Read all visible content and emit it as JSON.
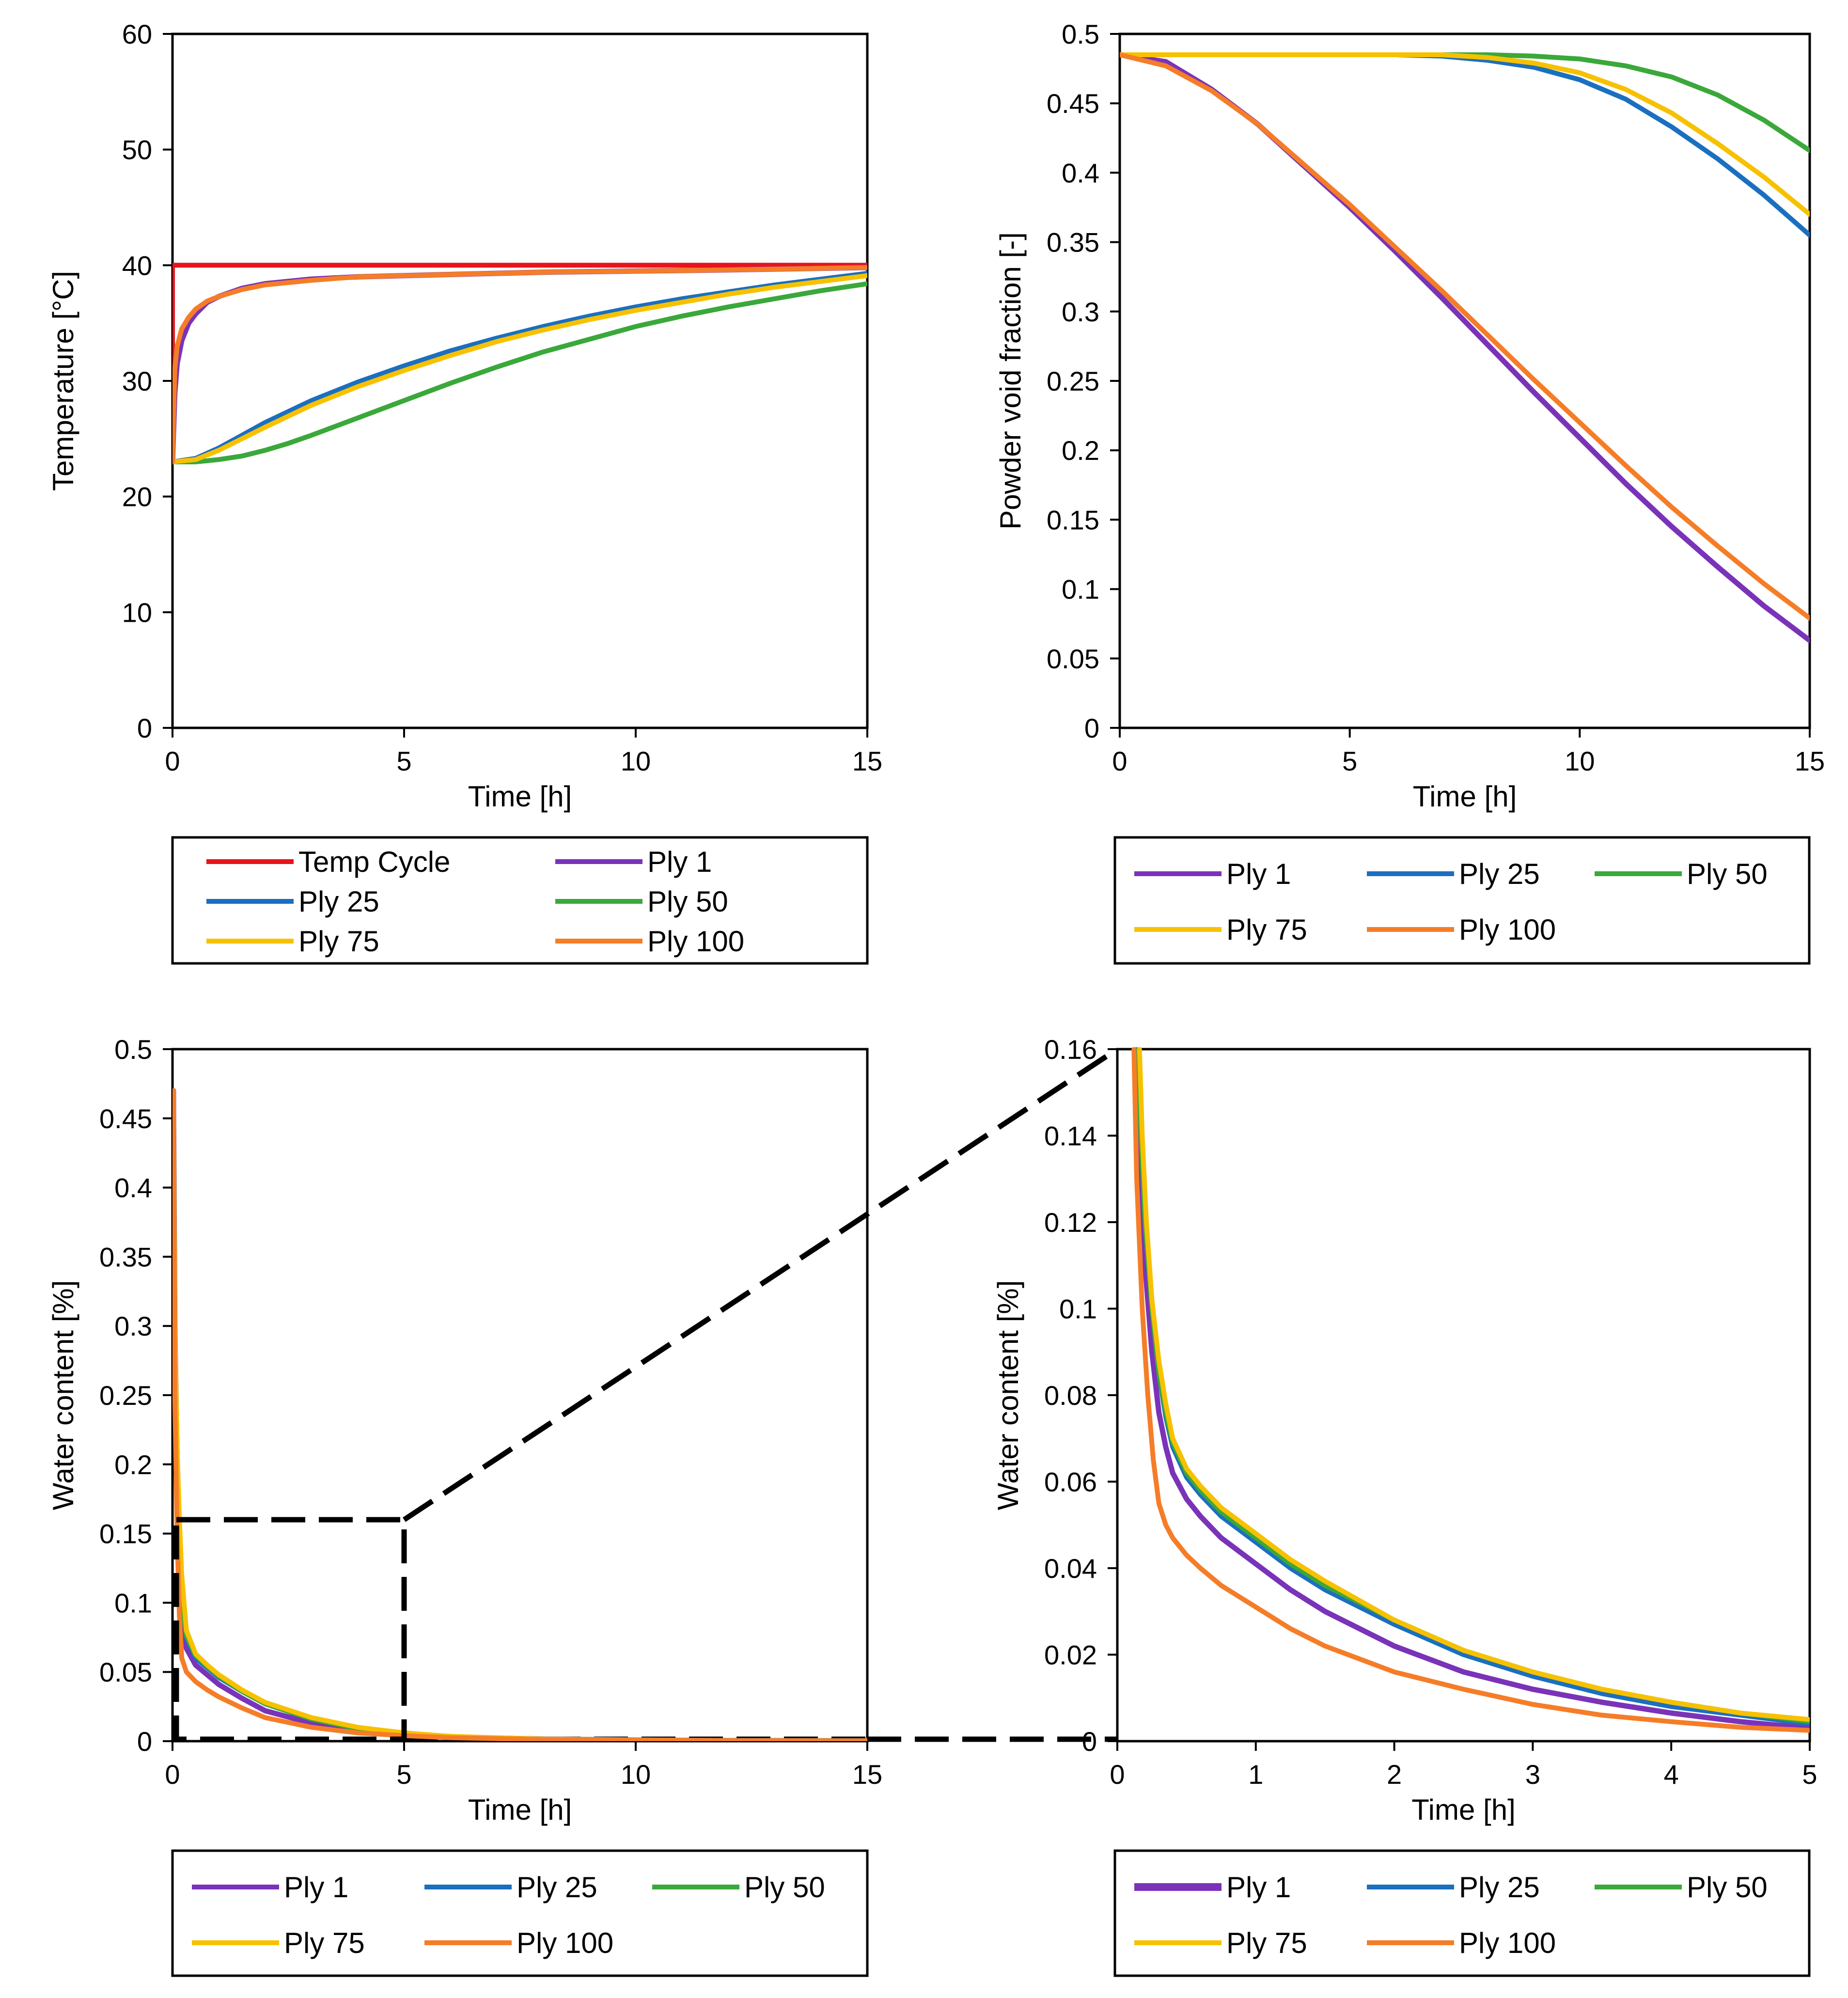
{
  "colors": {
    "temp_cycle": "#e8141b",
    "ply_1": "#7a33b8",
    "ply_25": "#1b6fbf",
    "ply_50": "#3aa83a",
    "ply_75": "#f7c100",
    "ply_100": "#f57d28"
  },
  "chart_data": [
    {
      "id": "temperature",
      "type": "line",
      "xlabel": "Time  [h]",
      "ylabel": "Temperature  [°C]",
      "xlim": [
        0,
        15
      ],
      "ylim": [
        0,
        60
      ],
      "xticks": [
        0,
        5,
        10,
        15
      ],
      "yticks": [
        0,
        10,
        20,
        30,
        40,
        50,
        60
      ],
      "xtick_labels": [
        "0",
        "5",
        "10",
        "15"
      ],
      "ytick_labels": [
        "0",
        "10",
        "20",
        "30",
        "40",
        "50",
        "60"
      ],
      "legend_placement": "below",
      "legend_columns": 2,
      "series": [
        {
          "name": "Temp Cycle",
          "color_key": "temp_cycle",
          "x": [
            0,
            0,
            15
          ],
          "y": [
            23,
            40,
            40
          ]
        },
        {
          "name": "Ply 1",
          "color_key": "ply_1",
          "x": [
            0,
            0.05,
            0.1,
            0.2,
            0.35,
            0.5,
            0.75,
            1,
            1.5,
            2,
            3,
            4,
            6,
            8,
            10,
            12,
            15
          ],
          "y": [
            23,
            29,
            31.5,
            33.5,
            35,
            35.8,
            36.8,
            37.3,
            38,
            38.4,
            38.8,
            39,
            39.2,
            39.4,
            39.5,
            39.6,
            39.8
          ]
        },
        {
          "name": "Ply 25",
          "color_key": "ply_25",
          "x": [
            0,
            0.5,
            1,
            1.5,
            2,
            3,
            4,
            5,
            6,
            7,
            8,
            9,
            10,
            11,
            12,
            13,
            14,
            15
          ],
          "y": [
            23,
            23.3,
            24.2,
            25.3,
            26.4,
            28.3,
            29.9,
            31.3,
            32.6,
            33.7,
            34.7,
            35.6,
            36.4,
            37.1,
            37.7,
            38.3,
            38.8,
            39.3
          ]
        },
        {
          "name": "Ply 50",
          "color_key": "ply_50",
          "x": [
            0,
            0.5,
            1,
            1.5,
            2,
            2.5,
            3,
            4,
            5,
            6,
            7,
            8,
            9,
            10,
            11,
            12,
            13,
            14,
            15
          ],
          "y": [
            23,
            23,
            23.2,
            23.5,
            24,
            24.6,
            25.3,
            26.8,
            28.3,
            29.8,
            31.2,
            32.5,
            33.6,
            34.7,
            35.6,
            36.4,
            37.1,
            37.8,
            38.4
          ]
        },
        {
          "name": "Ply 75",
          "color_key": "ply_75",
          "x": [
            0,
            0.5,
            1,
            1.5,
            2,
            3,
            4,
            5,
            6,
            7,
            8,
            9,
            10,
            11,
            12,
            13,
            14,
            15
          ],
          "y": [
            23,
            23.2,
            24,
            25,
            26,
            27.9,
            29.5,
            30.9,
            32.2,
            33.4,
            34.4,
            35.3,
            36.1,
            36.8,
            37.5,
            38.1,
            38.6,
            39.1
          ]
        },
        {
          "name": "Ply 100",
          "color_key": "ply_100",
          "x": [
            0,
            0.05,
            0.1,
            0.2,
            0.35,
            0.5,
            0.75,
            1,
            1.5,
            2,
            3,
            4,
            6,
            8,
            10,
            12,
            15
          ],
          "y": [
            23,
            31,
            33,
            34.5,
            35.5,
            36.2,
            36.9,
            37.3,
            37.9,
            38.3,
            38.7,
            39,
            39.2,
            39.4,
            39.5,
            39.6,
            39.8
          ]
        }
      ]
    },
    {
      "id": "void_fraction",
      "type": "line",
      "xlabel": "Time  [h]",
      "ylabel": "Powder void fraction [-]",
      "xlim": [
        0,
        15
      ],
      "ylim": [
        0,
        0.5
      ],
      "xticks": [
        0,
        5,
        10,
        15
      ],
      "yticks": [
        0,
        0.05,
        0.1,
        0.15,
        0.2,
        0.25,
        0.3,
        0.35,
        0.4,
        0.45,
        0.5
      ],
      "xtick_labels": [
        "0",
        "5",
        "10",
        "15"
      ],
      "ytick_labels": [
        "0",
        "0.05",
        "0.1",
        "0.15",
        "0.2",
        "0.25",
        "0.3",
        "0.35",
        "0.4",
        "0.45",
        "0.5"
      ],
      "legend_placement": "below",
      "legend_columns": 3,
      "series": [
        {
          "name": "Ply 1",
          "color_key": "ply_1",
          "x": [
            0,
            1,
            2,
            3,
            4,
            5,
            6,
            7,
            8,
            9,
            10,
            11,
            12,
            13,
            14,
            15
          ],
          "y": [
            0.485,
            0.48,
            0.46,
            0.435,
            0.405,
            0.375,
            0.343,
            0.31,
            0.276,
            0.242,
            0.209,
            0.176,
            0.145,
            0.116,
            0.088,
            0.063
          ]
        },
        {
          "name": "Ply 25",
          "color_key": "ply_25",
          "x": [
            0,
            6,
            7,
            8,
            9,
            10,
            11,
            12,
            13,
            14,
            15
          ],
          "y": [
            0.485,
            0.485,
            0.484,
            0.481,
            0.476,
            0.467,
            0.453,
            0.433,
            0.41,
            0.384,
            0.355
          ]
        },
        {
          "name": "Ply 50",
          "color_key": "ply_50",
          "x": [
            0,
            7,
            8,
            9,
            10,
            11,
            12,
            13,
            14,
            15
          ],
          "y": [
            0.485,
            0.485,
            0.485,
            0.484,
            0.482,
            0.477,
            0.469,
            0.456,
            0.438,
            0.416
          ]
        },
        {
          "name": "Ply 75",
          "color_key": "ply_75",
          "x": [
            0,
            6,
            7,
            8,
            9,
            10,
            11,
            12,
            13,
            14,
            15
          ],
          "y": [
            0.485,
            0.485,
            0.485,
            0.483,
            0.479,
            0.472,
            0.46,
            0.443,
            0.421,
            0.397,
            0.37
          ]
        },
        {
          "name": "Ply 100",
          "color_key": "ply_100",
          "x": [
            0,
            1,
            2,
            3,
            4,
            5,
            6,
            7,
            8,
            9,
            10,
            11,
            12,
            13,
            14,
            15
          ],
          "y": [
            0.485,
            0.477,
            0.459,
            0.435,
            0.406,
            0.377,
            0.346,
            0.315,
            0.283,
            0.251,
            0.22,
            0.189,
            0.159,
            0.131,
            0.104,
            0.079
          ]
        }
      ]
    },
    {
      "id": "water_content_full",
      "type": "line",
      "xlabel": "Time  [h]",
      "ylabel": "Water content [%]",
      "xlim": [
        0,
        15
      ],
      "ylim": [
        0,
        0.5
      ],
      "xticks": [
        0,
        5,
        10,
        15
      ],
      "yticks": [
        0,
        0.05,
        0.1,
        0.15,
        0.2,
        0.25,
        0.3,
        0.35,
        0.4,
        0.45,
        0.5
      ],
      "xtick_labels": [
        "0",
        "5",
        "10",
        "15"
      ],
      "ytick_labels": [
        "0",
        "0.05",
        "0.1",
        "0.15",
        "0.2",
        "0.25",
        "0.3",
        "0.35",
        "0.4",
        "0.45",
        "0.5"
      ],
      "legend_placement": "below",
      "legend_columns": 3,
      "zoom_box": {
        "x": [
          0,
          5
        ],
        "y": [
          0,
          0.16
        ]
      },
      "series": [
        {
          "name": "Ply 1",
          "color_key": "ply_1",
          "x": [
            0.02,
            0.05,
            0.1,
            0.15,
            0.2,
            0.3,
            0.5,
            0.75,
            1,
            1.5,
            2,
            3,
            4,
            5,
            6,
            8,
            10,
            12,
            15
          ],
          "y": [
            0.47,
            0.3,
            0.2,
            0.12,
            0.09,
            0.067,
            0.055,
            0.048,
            0.041,
            0.031,
            0.022,
            0.013,
            0.008,
            0.005,
            0.003,
            0.0015,
            0.0008,
            0.0004,
            0.0002
          ]
        },
        {
          "name": "Ply 25",
          "color_key": "ply_25",
          "x": [
            0.02,
            0.05,
            0.1,
            0.15,
            0.2,
            0.3,
            0.5,
            0.75,
            1,
            1.5,
            2,
            3,
            4,
            5,
            6,
            8,
            10,
            12,
            15
          ],
          "y": [
            0.47,
            0.3,
            0.21,
            0.15,
            0.1,
            0.075,
            0.06,
            0.053,
            0.046,
            0.036,
            0.027,
            0.016,
            0.009,
            0.005,
            0.003,
            0.0015,
            0.0008,
            0.0004,
            0.0002
          ]
        },
        {
          "name": "Ply 50",
          "color_key": "ply_50",
          "x": [
            0.02,
            0.05,
            0.1,
            0.15,
            0.2,
            0.3,
            0.5,
            0.75,
            1,
            1.5,
            2,
            3,
            4,
            5,
            6,
            8,
            10,
            12,
            15
          ],
          "y": [
            0.47,
            0.3,
            0.21,
            0.15,
            0.1,
            0.076,
            0.062,
            0.054,
            0.047,
            0.036,
            0.027,
            0.016,
            0.009,
            0.005,
            0.003,
            0.0015,
            0.0008,
            0.0004,
            0.0002
          ]
        },
        {
          "name": "Ply 75",
          "color_key": "ply_75",
          "x": [
            0.02,
            0.05,
            0.1,
            0.15,
            0.2,
            0.3,
            0.5,
            0.75,
            1,
            1.5,
            2,
            3,
            4,
            5,
            6,
            8,
            10,
            12,
            15
          ],
          "y": [
            0.47,
            0.3,
            0.21,
            0.16,
            0.12,
            0.08,
            0.063,
            0.055,
            0.048,
            0.037,
            0.028,
            0.017,
            0.01,
            0.006,
            0.0035,
            0.0015,
            0.0008,
            0.0004,
            0.0002
          ]
        },
        {
          "name": "Ply 100",
          "color_key": "ply_100",
          "x": [
            0.02,
            0.05,
            0.1,
            0.15,
            0.2,
            0.3,
            0.5,
            0.75,
            1,
            1.5,
            2,
            3,
            4,
            5,
            6,
            8,
            10,
            12,
            15
          ],
          "y": [
            0.47,
            0.25,
            0.15,
            0.09,
            0.06,
            0.05,
            0.043,
            0.037,
            0.032,
            0.024,
            0.017,
            0.01,
            0.006,
            0.004,
            0.0025,
            0.0012,
            0.0006,
            0.0003,
            0.0001
          ]
        }
      ]
    },
    {
      "id": "water_content_zoom",
      "type": "line",
      "xlabel": "Time  [h]",
      "ylabel": "Water content [%]",
      "xlim": [
        0,
        5
      ],
      "ylim": [
        0,
        0.16
      ],
      "xticks": [
        0,
        1,
        2,
        3,
        4,
        5
      ],
      "yticks": [
        0,
        0.02,
        0.04,
        0.06,
        0.08,
        0.1,
        0.12,
        0.14,
        0.16
      ],
      "xtick_labels": [
        "0",
        "1",
        "2",
        "3",
        "4",
        "5"
      ],
      "ytick_labels": [
        "0",
        "0.02",
        "0.04",
        "0.06",
        "0.08",
        "0.1",
        "0.12",
        "0.14",
        "0.16"
      ],
      "legend_placement": "below",
      "legend_columns": 3,
      "series": [
        {
          "name": "Ply 1",
          "color_key": "ply_1",
          "x": [
            0.13,
            0.15,
            0.2,
            0.25,
            0.3,
            0.35,
            0.4,
            0.5,
            0.6,
            0.75,
            1,
            1.25,
            1.5,
            2,
            2.5,
            3,
            3.5,
            4,
            4.5,
            5
          ],
          "y": [
            0.16,
            0.14,
            0.11,
            0.09,
            0.076,
            0.068,
            0.062,
            0.056,
            0.052,
            0.047,
            0.041,
            0.035,
            0.03,
            0.022,
            0.016,
            0.012,
            0.009,
            0.0065,
            0.0045,
            0.003
          ]
        },
        {
          "name": "Ply 25",
          "color_key": "ply_25",
          "x": [
            0.15,
            0.17,
            0.2,
            0.25,
            0.3,
            0.35,
            0.4,
            0.5,
            0.6,
            0.75,
            1,
            1.25,
            1.5,
            2,
            2.5,
            3,
            3.5,
            4,
            4.5,
            5
          ],
          "y": [
            0.16,
            0.14,
            0.12,
            0.1,
            0.085,
            0.075,
            0.068,
            0.061,
            0.057,
            0.052,
            0.046,
            0.04,
            0.035,
            0.027,
            0.02,
            0.015,
            0.011,
            0.008,
            0.006,
            0.004
          ]
        },
        {
          "name": "Ply 50",
          "color_key": "ply_50",
          "x": [
            0.15,
            0.17,
            0.2,
            0.25,
            0.3,
            0.35,
            0.4,
            0.5,
            0.6,
            0.75,
            1,
            1.25,
            1.5,
            2,
            2.5,
            3,
            3.5,
            4,
            4.5,
            5
          ],
          "y": [
            0.16,
            0.14,
            0.12,
            0.1,
            0.085,
            0.076,
            0.069,
            0.062,
            0.058,
            0.053,
            0.047,
            0.041,
            0.036,
            0.028,
            0.021,
            0.016,
            0.012,
            0.009,
            0.0065,
            0.0045
          ]
        },
        {
          "name": "Ply 75",
          "color_key": "ply_75",
          "x": [
            0.16,
            0.18,
            0.21,
            0.25,
            0.3,
            0.35,
            0.4,
            0.5,
            0.6,
            0.75,
            1,
            1.25,
            1.5,
            2,
            2.5,
            3,
            3.5,
            4,
            4.5,
            5
          ],
          "y": [
            0.16,
            0.14,
            0.12,
            0.102,
            0.088,
            0.078,
            0.07,
            0.063,
            0.059,
            0.054,
            0.048,
            0.042,
            0.037,
            0.028,
            0.021,
            0.016,
            0.012,
            0.009,
            0.0065,
            0.005
          ]
        },
        {
          "name": "Ply 100",
          "color_key": "ply_100",
          "x": [
            0.12,
            0.14,
            0.18,
            0.22,
            0.26,
            0.3,
            0.35,
            0.4,
            0.5,
            0.6,
            0.75,
            1,
            1.25,
            1.5,
            2,
            2.5,
            3,
            3.5,
            4,
            4.5,
            5
          ],
          "y": [
            0.16,
            0.13,
            0.1,
            0.08,
            0.065,
            0.055,
            0.05,
            0.047,
            0.043,
            0.04,
            0.036,
            0.031,
            0.026,
            0.022,
            0.016,
            0.012,
            0.0085,
            0.006,
            0.0045,
            0.0032,
            0.0025
          ]
        }
      ]
    }
  ]
}
